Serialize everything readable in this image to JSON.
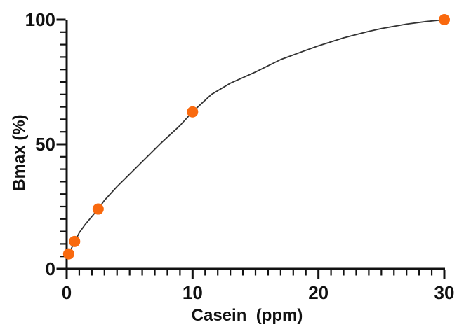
{
  "chart_data": {
    "type": "scatter",
    "title": "",
    "xlabel": "Casein  (ppm)",
    "ylabel": "Bmax (%)",
    "xlim": [
      0,
      30
    ],
    "ylim": [
      0,
      100
    ],
    "grid": false,
    "legend": null,
    "x_axis": {
      "major_ticks": [
        0,
        10,
        20,
        30
      ],
      "major_tick_labels": [
        "0",
        "10",
        "20",
        "30"
      ],
      "minor_tick_step": 1
    },
    "y_axis": {
      "major_ticks": [
        0,
        50,
        100
      ],
      "major_tick_labels": [
        "0",
        "50",
        "100"
      ],
      "minor_tick_step": 5
    },
    "series": [
      {
        "name": "measured-points",
        "type": "scatter",
        "x": [
          0.16,
          0.63,
          2.5,
          10,
          30
        ],
        "y": [
          6,
          11,
          24,
          63,
          100
        ]
      },
      {
        "name": "fit-curve",
        "type": "line",
        "x": [
          0.16,
          0.5,
          1,
          1.5,
          2,
          2.5,
          3,
          4,
          5,
          6,
          7.5,
          9,
          10,
          11.5,
          13,
          15,
          17,
          19,
          20,
          22,
          24,
          25,
          27,
          28.5,
          30
        ],
        "y": [
          6,
          9.5,
          14.5,
          18,
          21,
          24,
          27.5,
          33,
          38,
          43,
          50.5,
          57.5,
          63,
          70,
          74.5,
          79,
          84,
          87.7,
          89.5,
          92.7,
          95.3,
          96.4,
          98.2,
          99.2,
          100
        ]
      }
    ],
    "colors": {
      "marker": "#F9690E",
      "curve": "#333333",
      "axis": "#111111",
      "text": "#111111",
      "background": "#ffffff"
    }
  }
}
